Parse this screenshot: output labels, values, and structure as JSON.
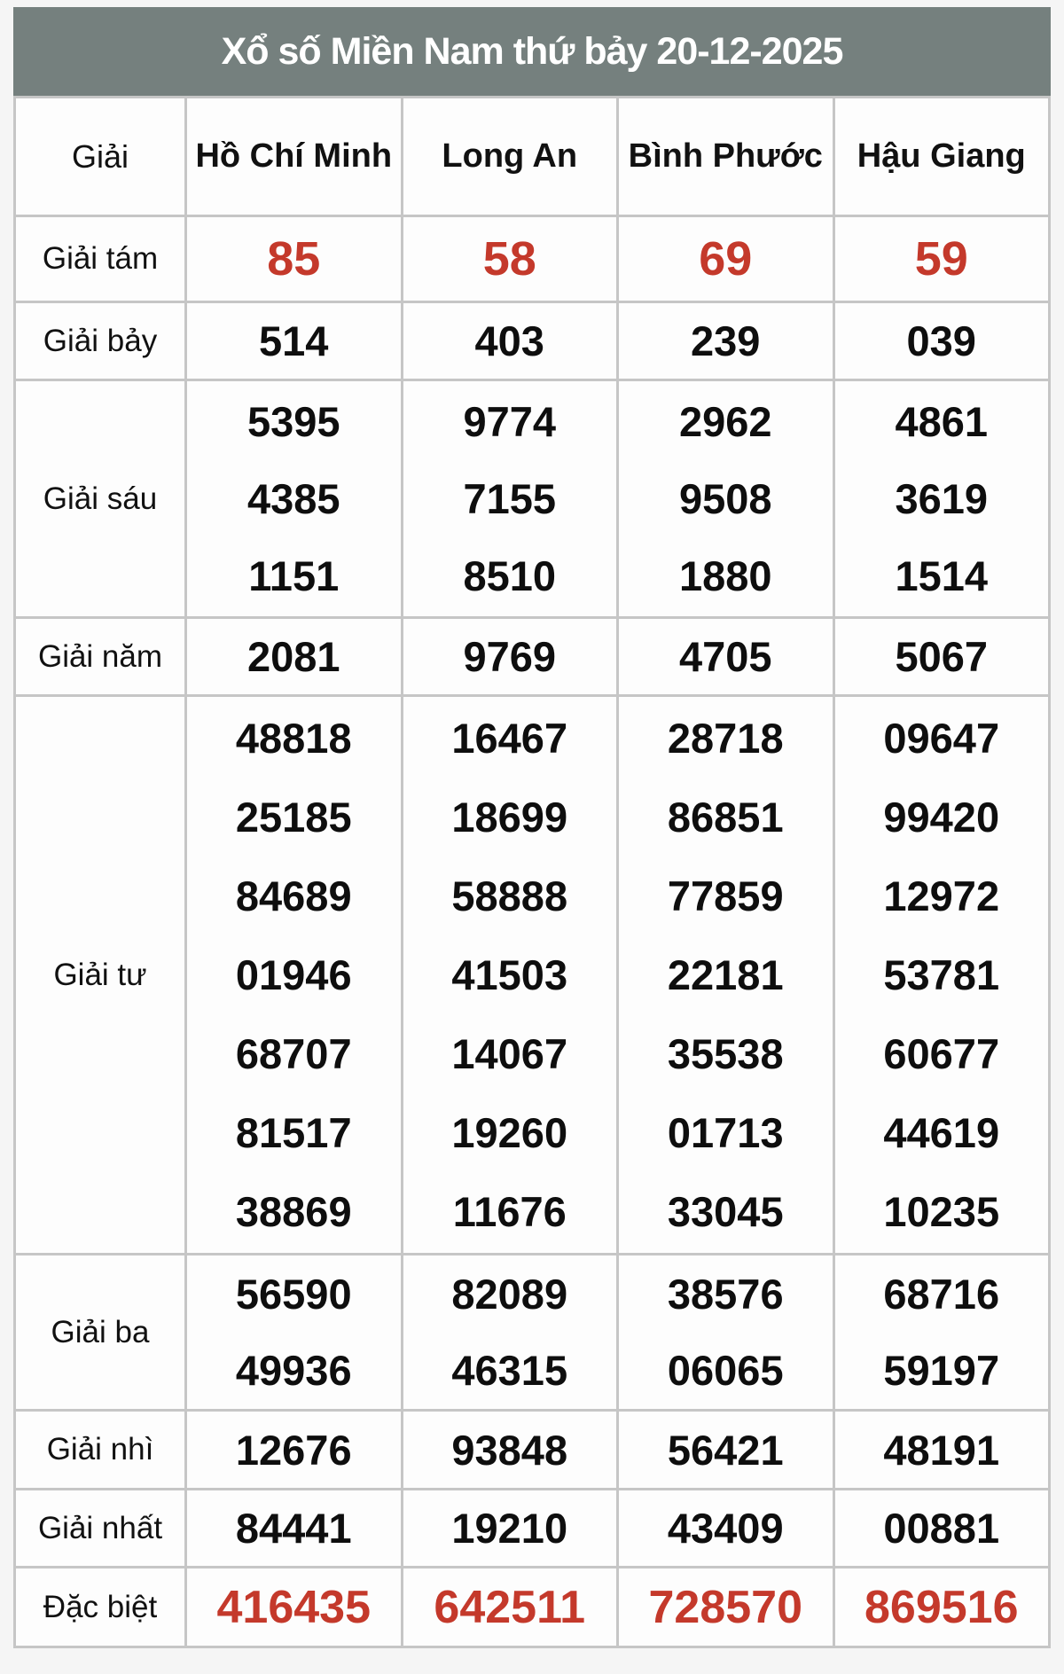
{
  "title": "Xổ số Miền Nam thứ bảy 20-12-2025",
  "colors": {
    "header_bg": "#75807e",
    "highlight_red": "#c4392b",
    "border": "#c6c6c6",
    "cell_bg": "#fdfdfd"
  },
  "table": {
    "corner_label": "Giải",
    "provinces": [
      "Hồ Chí Minh",
      "Long An",
      "Bình Phước",
      "Hậu Giang"
    ],
    "rows": [
      {
        "label": "Giải tám",
        "highlight": true,
        "values": [
          [
            "85"
          ],
          [
            "58"
          ],
          [
            "69"
          ],
          [
            "59"
          ]
        ]
      },
      {
        "label": "Giải bảy",
        "highlight": false,
        "values": [
          [
            "514"
          ],
          [
            "403"
          ],
          [
            "239"
          ],
          [
            "039"
          ]
        ]
      },
      {
        "label": "Giải sáu",
        "highlight": false,
        "values": [
          [
            "5395",
            "4385",
            "1151"
          ],
          [
            "9774",
            "7155",
            "8510"
          ],
          [
            "2962",
            "9508",
            "1880"
          ],
          [
            "4861",
            "3619",
            "1514"
          ]
        ]
      },
      {
        "label": "Giải năm",
        "highlight": false,
        "values": [
          [
            "2081"
          ],
          [
            "9769"
          ],
          [
            "4705"
          ],
          [
            "5067"
          ]
        ]
      },
      {
        "label": "Giải tư",
        "highlight": false,
        "values": [
          [
            "48818",
            "25185",
            "84689",
            "01946",
            "68707",
            "81517",
            "38869"
          ],
          [
            "16467",
            "18699",
            "58888",
            "41503",
            "14067",
            "19260",
            "11676"
          ],
          [
            "28718",
            "86851",
            "77859",
            "22181",
            "35538",
            "01713",
            "33045"
          ],
          [
            "09647",
            "99420",
            "12972",
            "53781",
            "60677",
            "44619",
            "10235"
          ]
        ]
      },
      {
        "label": "Giải ba",
        "highlight": false,
        "values": [
          [
            "56590",
            "49936"
          ],
          [
            "82089",
            "46315"
          ],
          [
            "38576",
            "06065"
          ],
          [
            "68716",
            "59197"
          ]
        ]
      },
      {
        "label": "Giải nhì",
        "highlight": false,
        "values": [
          [
            "12676"
          ],
          [
            "93848"
          ],
          [
            "56421"
          ],
          [
            "48191"
          ]
        ]
      },
      {
        "label": "Giải nhất",
        "highlight": false,
        "values": [
          [
            "84441"
          ],
          [
            "19210"
          ],
          [
            "43409"
          ],
          [
            "00881"
          ]
        ]
      },
      {
        "label": "Đặc biệt",
        "highlight": true,
        "values": [
          [
            "416435"
          ],
          [
            "642511"
          ],
          [
            "728570"
          ],
          [
            "869516"
          ]
        ]
      }
    ]
  }
}
